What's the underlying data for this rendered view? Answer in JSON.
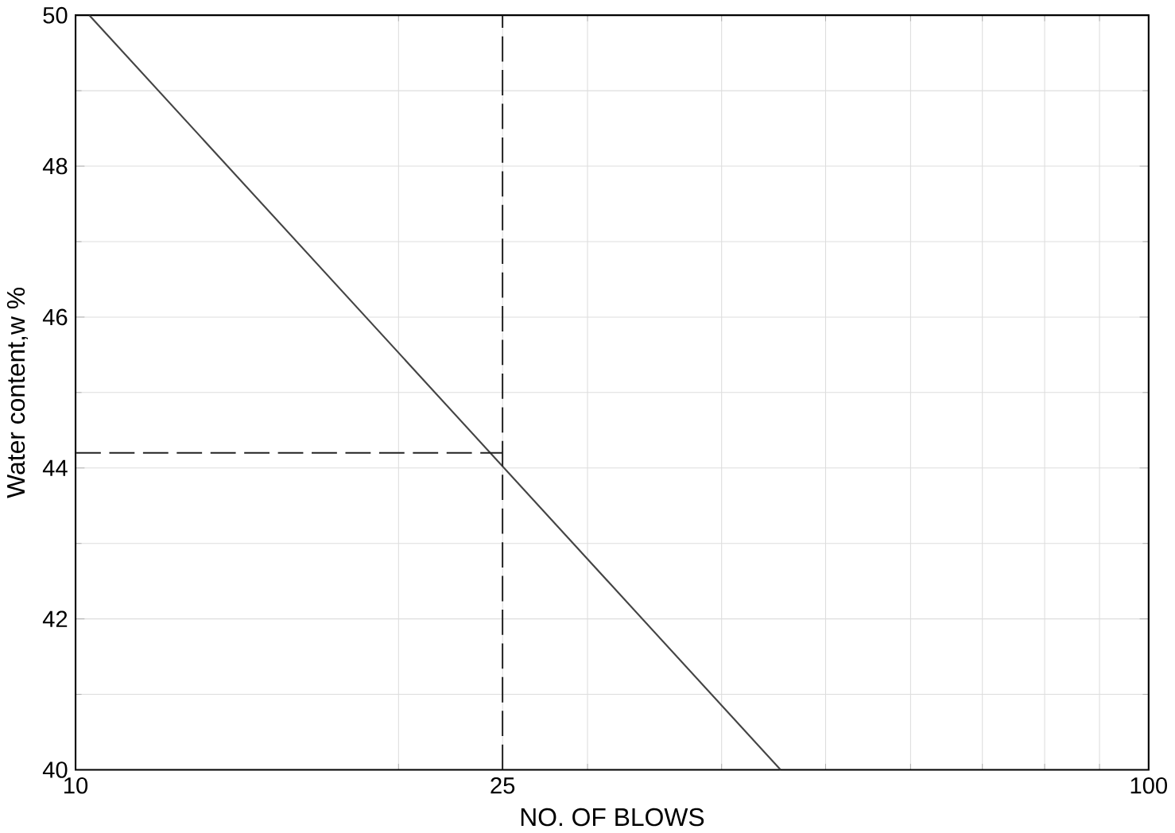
{
  "chart_data": {
    "type": "line",
    "xlabel": "NO.  OF BLOWS",
    "ylabel": "Water content,w %",
    "log": "x",
    "xlim": [
      10,
      100
    ],
    "xticks": [
      10,
      25,
      100
    ],
    "ylim": [
      40,
      50
    ],
    "yticks": [
      40,
      42,
      44,
      46,
      48,
      50
    ],
    "grid": true,
    "marker": "none",
    "line_style": "solid",
    "series": [
      {
        "color": "#444444",
        "x": [
          10.3,
          45.4
        ],
        "values": [
          50,
          40
        ]
      }
    ],
    "ref_lines": [
      {
        "axis": "x",
        "value": 25,
        "color": "#222222",
        "line_style": "dashed"
      },
      {
        "axis": "y",
        "value": 44.2,
        "color": "#222222",
        "line_style": "dashed"
      }
    ]
  }
}
